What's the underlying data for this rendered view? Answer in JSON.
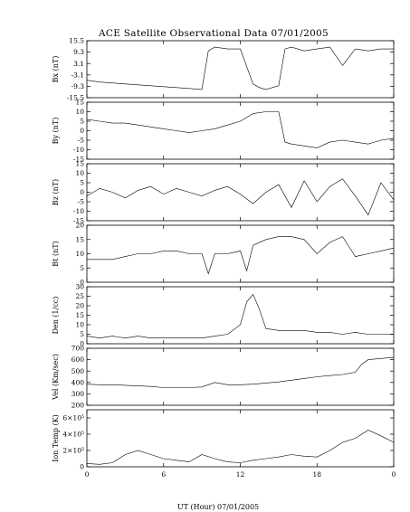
{
  "chart_data": {
    "type": "line",
    "title": "ACE Satellite Observational Data   07/01/2005",
    "xlabel": "UT (Hour)   07/01/2005",
    "x_ticks": [
      "0",
      "6",
      "12",
      "18",
      "0"
    ],
    "xlim_hours": [
      0,
      24
    ],
    "panels": [
      {
        "ylabel": "Bx (nT)",
        "ylim": [
          -15.5,
          15.5
        ],
        "y_ticks": [
          15.5,
          9.3,
          3.1,
          -3.1,
          -9.3,
          -15.5
        ],
        "y_tick_labels": [
          "15.5",
          "9.3",
          "3.1",
          "-3.1",
          "-9.3",
          "-15.5"
        ],
        "x": [
          0,
          1,
          2,
          3,
          4,
          5,
          6,
          7,
          8,
          9,
          9.5,
          10,
          11,
          12,
          13,
          13.5,
          14,
          15,
          15.5,
          16,
          17,
          18,
          19,
          20,
          21,
          22,
          23,
          24
        ],
        "values": [
          -6,
          -7,
          -7.5,
          -8,
          -8.5,
          -9,
          -9.5,
          -10,
          -10.5,
          -11,
          10,
          12,
          11,
          11,
          -8,
          -10,
          -11,
          -9,
          11,
          12,
          10,
          11,
          12,
          2,
          11,
          10,
          11,
          11
        ]
      },
      {
        "ylabel": "By (nT)",
        "ylim": [
          -15,
          15
        ],
        "y_ticks": [
          15,
          10,
          5,
          0,
          -5,
          -10,
          -15
        ],
        "y_tick_labels": [
          "15",
          "10",
          "5",
          "0",
          "-5",
          "-10",
          "-15"
        ],
        "x": [
          0,
          1,
          2,
          3,
          4,
          5,
          6,
          7,
          8,
          9,
          10,
          11,
          12,
          13,
          14,
          15,
          15.5,
          16,
          17,
          18,
          19,
          20,
          21,
          22,
          23,
          24
        ],
        "values": [
          6,
          5,
          4,
          4,
          3,
          2,
          1,
          0,
          -1,
          0,
          1,
          3,
          5,
          9,
          10,
          10,
          -6,
          -7,
          -8,
          -9,
          -6,
          -5,
          -6,
          -7,
          -5,
          -4
        ]
      },
      {
        "ylabel": "Bz (nT)",
        "ylim": [
          -15,
          15
        ],
        "y_ticks": [
          15,
          10,
          5,
          0,
          -5,
          -10,
          -15
        ],
        "y_tick_labels": [
          "15",
          "10",
          "5",
          "0",
          "-5",
          "-10",
          "-15"
        ],
        "x": [
          0,
          1,
          2,
          3,
          4,
          5,
          6,
          7,
          8,
          9,
          10,
          11,
          12,
          13,
          14,
          15,
          16,
          17,
          18,
          19,
          20,
          21,
          22,
          23,
          24
        ],
        "values": [
          -2,
          2,
          0,
          -3,
          1,
          3,
          -1,
          2,
          0,
          -2,
          1,
          3,
          -1,
          -6,
          0,
          4,
          -8,
          6,
          -5,
          3,
          7,
          -2,
          -12,
          5,
          -4
        ]
      },
      {
        "ylabel": "Bt (nT)",
        "ylim": [
          0,
          20
        ],
        "y_ticks": [
          20,
          15,
          10,
          5,
          0
        ],
        "y_tick_labels": [
          "20",
          "15",
          "10",
          "5",
          "0"
        ],
        "x": [
          0,
          1,
          2,
          3,
          4,
          5,
          6,
          7,
          8,
          9,
          9.5,
          10,
          11,
          12,
          12.5,
          13,
          14,
          15,
          16,
          17,
          18,
          19,
          20,
          21,
          22,
          23,
          24
        ],
        "values": [
          8,
          8,
          8,
          9,
          10,
          10,
          11,
          11,
          10,
          10,
          3,
          10,
          10,
          11,
          4,
          13,
          15,
          16,
          16,
          15,
          10,
          14,
          16,
          9,
          10,
          11,
          12
        ]
      },
      {
        "ylabel": "Den (1/cc)",
        "ylim": [
          0,
          30
        ],
        "y_ticks": [
          30,
          25,
          20,
          15,
          10,
          5,
          0
        ],
        "y_tick_labels": [
          "30",
          "25",
          "20",
          "15",
          "10",
          "5",
          "0"
        ],
        "x": [
          0,
          1,
          2,
          3,
          4,
          5,
          6,
          7,
          8,
          9,
          10,
          11,
          12,
          12.5,
          13,
          13.5,
          14,
          15,
          16,
          17,
          18,
          19,
          20,
          21,
          22,
          23,
          24
        ],
        "values": [
          4,
          3,
          4,
          3,
          4,
          3,
          3,
          3,
          3,
          3,
          4,
          5,
          10,
          22,
          26,
          18,
          8,
          7,
          7,
          7,
          6,
          6,
          5,
          6,
          5,
          5,
          5
        ]
      },
      {
        "ylabel": "Vel (Km/sec)",
        "ylim": [
          200,
          700
        ],
        "y_ticks": [
          700,
          600,
          500,
          400,
          300,
          200
        ],
        "y_tick_labels": [
          "700",
          "600",
          "500",
          "400",
          "300",
          "200"
        ],
        "x": [
          0,
          1,
          2,
          3,
          4,
          5,
          6,
          7,
          8,
          9,
          10,
          11,
          12,
          13,
          14,
          15,
          16,
          17,
          18,
          19,
          20,
          21,
          21.5,
          22,
          23,
          24
        ],
        "values": [
          385,
          380,
          380,
          375,
          370,
          365,
          355,
          355,
          355,
          360,
          400,
          380,
          380,
          385,
          395,
          405,
          420,
          435,
          450,
          460,
          470,
          490,
          560,
          600,
          610,
          620
        ]
      },
      {
        "ylabel": "Ion Temp (K)",
        "ylim": [
          0,
          700000
        ],
        "y_ticks": [
          600000,
          400000,
          200000,
          0
        ],
        "y_tick_labels": [
          "6×10⁵",
          "4×10⁵",
          "2×10⁵",
          "0"
        ],
        "x": [
          0,
          1,
          2,
          3,
          4,
          5,
          6,
          7,
          8,
          9,
          10,
          11,
          12,
          13,
          14,
          15,
          16,
          17,
          18,
          19,
          20,
          21,
          22,
          23,
          24
        ],
        "values": [
          40000,
          30000,
          50000,
          150000,
          200000,
          150000,
          100000,
          80000,
          60000,
          150000,
          100000,
          60000,
          50000,
          80000,
          100000,
          120000,
          150000,
          130000,
          120000,
          200000,
          300000,
          350000,
          450000,
          380000,
          300000
        ]
      }
    ]
  }
}
